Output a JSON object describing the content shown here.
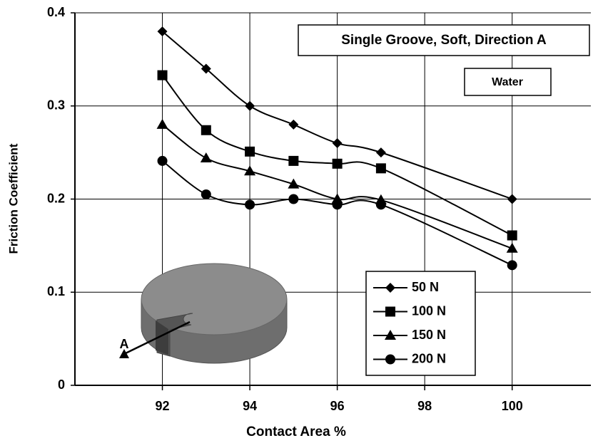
{
  "chart_data": {
    "type": "line",
    "x_label": "Contact Area %",
    "y_label": "Friction Coefficient",
    "annotations": [
      "Single Groove, Soft, Direction A",
      "Water",
      "A"
    ],
    "x": [
      92,
      93,
      94,
      95,
      96,
      97,
      100
    ],
    "xlim": [
      90,
      101.8
    ],
    "xticks": [
      92,
      94,
      96,
      98,
      100
    ],
    "ylim": [
      0,
      0.4
    ],
    "yticks": [
      0,
      0.1,
      0.2,
      0.3,
      0.4
    ],
    "grid": true,
    "series": [
      {
        "name": "50 N",
        "color": "#000000",
        "marker": "diamond",
        "values": [
          0.38,
          0.34,
          0.3,
          0.28,
          0.26,
          0.25,
          0.2
        ]
      },
      {
        "name": "100 N",
        "color": "#000000",
        "marker": "square",
        "values": [
          0.333,
          0.274,
          0.251,
          0.241,
          0.238,
          0.233,
          0.161
        ]
      },
      {
        "name": "150 N",
        "color": "#000000",
        "marker": "triangle",
        "values": [
          0.28,
          0.244,
          0.23,
          0.216,
          0.2,
          0.199,
          0.147
        ]
      },
      {
        "name": "200 N",
        "color": "#000000",
        "marker": "circle",
        "values": [
          0.241,
          0.205,
          0.194,
          0.2,
          0.194,
          0.194,
          0.129
        ]
      }
    ]
  }
}
